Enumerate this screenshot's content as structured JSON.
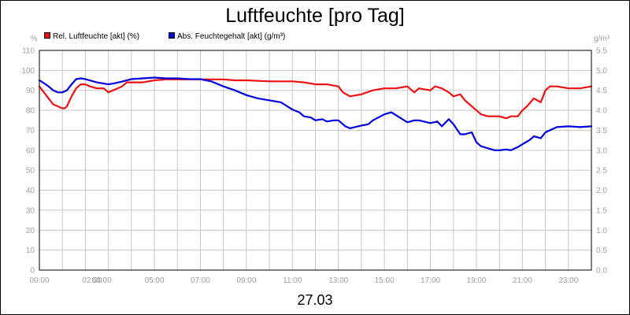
{
  "chart_data": {
    "type": "line",
    "title": "Luftfeuchte [pro Tag]",
    "date_label": "27.03",
    "left_axis": {
      "unit": "%",
      "ylim": [
        0,
        110
      ],
      "ticks": [
        "0",
        "10",
        "20",
        "30",
        "40",
        "50",
        "60",
        "70",
        "80",
        "90",
        "100",
        "110"
      ]
    },
    "right_axis": {
      "unit": "g/m³",
      "ylim": [
        0,
        5.5
      ],
      "ticks": [
        "0.0",
        "0.5",
        "1.0",
        "1.5",
        "2.0",
        "2.5",
        "3.0",
        "3.5",
        "4.0",
        "4.5",
        "5.0",
        "5.5"
      ]
    },
    "x_axis": {
      "unit": "hours",
      "range": [
        0,
        24
      ],
      "ticks": [
        {
          "hour": 0,
          "label": "00:00"
        },
        {
          "hour": 2,
          "label": "02:00"
        },
        {
          "hour": 3,
          "label": "03:00"
        },
        {
          "hour": 5,
          "label": "05:00"
        },
        {
          "hour": 7,
          "label": "07:00"
        },
        {
          "hour": 9,
          "label": "09:00"
        },
        {
          "hour": 11,
          "label": "11:00"
        },
        {
          "hour": 13,
          "label": "13:00"
        },
        {
          "hour": 15,
          "label": "15:00"
        },
        {
          "hour": 17,
          "label": "17:00"
        },
        {
          "hour": 19,
          "label": "19:00"
        },
        {
          "hour": 21,
          "label": "21:00"
        },
        {
          "hour": 23,
          "label": "23:00"
        }
      ]
    },
    "grid": true,
    "legend_position": "top-left",
    "series": [
      {
        "name": "Rel. Luftfeuchte [akt] (%)",
        "color": "#ee1111",
        "axis": "left",
        "x": [
          0,
          0.2,
          0.4,
          0.6,
          0.8,
          1.0,
          1.1,
          1.2,
          1.4,
          1.6,
          1.8,
          2.0,
          2.2,
          2.5,
          2.8,
          3.0,
          3.2,
          3.4,
          3.6,
          3.8,
          4.0,
          4.2,
          4.5,
          5.0,
          5.5,
          6.0,
          6.5,
          7.0,
          7.5,
          8.0,
          8.5,
          9.0,
          10.0,
          11.0,
          11.5,
          12.0,
          12.5,
          13.0,
          13.2,
          13.5,
          14.0,
          14.5,
          15.0,
          15.5,
          16.0,
          16.3,
          16.5,
          17.0,
          17.2,
          17.5,
          17.8,
          18.0,
          18.3,
          18.5,
          18.8,
          19.0,
          19.2,
          19.5,
          19.8,
          20.0,
          20.3,
          20.5,
          20.8,
          21.0,
          21.2,
          21.5,
          21.8,
          22.0,
          22.2,
          22.5,
          23.0,
          23.5,
          24.0
        ],
        "y": [
          92,
          89,
          86,
          83,
          82,
          81,
          81,
          82,
          87,
          91,
          93,
          93,
          92,
          91,
          91,
          89,
          90,
          91,
          92,
          94,
          94,
          94,
          94,
          95,
          95.5,
          95.5,
          95.5,
          95.5,
          95.5,
          95.5,
          95,
          95,
          94.5,
          94.5,
          94,
          93,
          93,
          92,
          89,
          87,
          88,
          90,
          91,
          91,
          92,
          89,
          91,
          90,
          92,
          91,
          89,
          87,
          88,
          85,
          82,
          80,
          78,
          77,
          77,
          77,
          76,
          77,
          77,
          80,
          82,
          86,
          84,
          90,
          92,
          92,
          91,
          91,
          92
        ]
      },
      {
        "name": "Abs. Feuchtegehalt [akt] (g/m³)",
        "color": "#0000dd",
        "axis": "right",
        "x": [
          0,
          0.2,
          0.4,
          0.6,
          0.8,
          1.0,
          1.2,
          1.4,
          1.6,
          1.8,
          2.0,
          2.5,
          3.0,
          3.3,
          3.6,
          4.0,
          4.5,
          5.0,
          5.5,
          6.0,
          6.5,
          7.0,
          7.5,
          8.0,
          8.5,
          9.0,
          9.5,
          10.0,
          10.5,
          11.0,
          11.3,
          11.5,
          11.8,
          12.0,
          12.3,
          12.5,
          12.8,
          13.0,
          13.3,
          13.5,
          14.0,
          14.3,
          14.5,
          15.0,
          15.3,
          15.5,
          16.0,
          16.3,
          16.5,
          17.0,
          17.3,
          17.5,
          17.8,
          18.0,
          18.3,
          18.5,
          18.8,
          19.0,
          19.2,
          19.5,
          19.8,
          20.0,
          20.3,
          20.5,
          20.8,
          21.0,
          21.3,
          21.5,
          21.8,
          22.0,
          22.5,
          23.0,
          23.5,
          24.0
        ],
        "y": [
          4.75,
          4.68,
          4.6,
          4.5,
          4.45,
          4.45,
          4.5,
          4.65,
          4.78,
          4.8,
          4.78,
          4.7,
          4.65,
          4.68,
          4.72,
          4.78,
          4.8,
          4.82,
          4.8,
          4.8,
          4.78,
          4.78,
          4.72,
          4.6,
          4.5,
          4.38,
          4.3,
          4.25,
          4.2,
          4.02,
          3.95,
          3.85,
          3.82,
          3.75,
          3.78,
          3.72,
          3.75,
          3.75,
          3.6,
          3.55,
          3.62,
          3.65,
          3.75,
          3.9,
          3.95,
          3.88,
          3.7,
          3.75,
          3.75,
          3.68,
          3.72,
          3.6,
          3.78,
          3.65,
          3.4,
          3.4,
          3.45,
          3.2,
          3.1,
          3.05,
          3.0,
          3.0,
          3.02,
          3.0,
          3.08,
          3.15,
          3.25,
          3.35,
          3.3,
          3.45,
          3.58,
          3.6,
          3.58,
          3.6
        ]
      }
    ]
  }
}
